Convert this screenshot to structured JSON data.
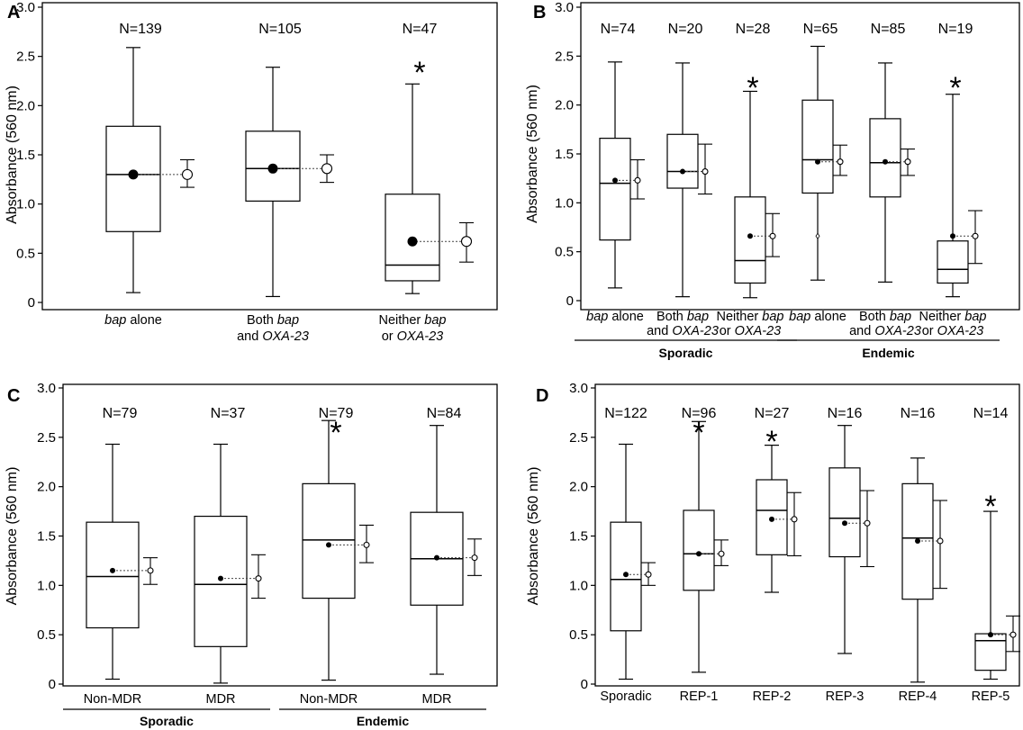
{
  "figure": {
    "panel_count": 4
  },
  "colors": {
    "ink": "#000000",
    "background": "#ffffff",
    "ci_marker_fill": "#ffffff"
  },
  "chart_data": [
    {
      "panel_label": "A",
      "type": "box",
      "ylabel": "Absorbance (560 nm)",
      "ylim": [
        0,
        3.0
      ],
      "yticks": [
        0,
        0.5,
        1.0,
        1.5,
        2.0,
        2.5,
        3.0
      ],
      "ytick_labels": [
        "0",
        "0.5",
        "1.0",
        "1.5",
        "2.0",
        "2.5",
        "3.0"
      ],
      "groups": [],
      "series": [
        {
          "label_rich": [
            {
              "text": "bap",
              "italic": true
            },
            {
              "text": " alone",
              "italic": false
            }
          ],
          "label": "bap alone",
          "n_label": "N=139",
          "star": false,
          "min": 0.1,
          "q1": 0.72,
          "median": 1.3,
          "q3": 1.79,
          "max": 2.59,
          "mean": 1.3,
          "ci_low": 1.17,
          "ci_high": 1.45
        },
        {
          "label_rich": [
            {
              "text": "Both ",
              "italic": false
            },
            {
              "text": "bap",
              "italic": true
            },
            {
              "text": "\n",
              "italic": false
            },
            {
              "text": "and ",
              "italic": false
            },
            {
              "text": "OXA-23",
              "italic": true
            }
          ],
          "label": "Both bap and OXA-23",
          "n_label": "N=105",
          "star": false,
          "min": 0.06,
          "q1": 1.03,
          "median": 1.36,
          "q3": 1.74,
          "max": 2.39,
          "mean": 1.36,
          "ci_low": 1.22,
          "ci_high": 1.5
        },
        {
          "label_rich": [
            {
              "text": "Neither ",
              "italic": false
            },
            {
              "text": "bap",
              "italic": true
            },
            {
              "text": "\n",
              "italic": false
            },
            {
              "text": "or ",
              "italic": false
            },
            {
              "text": "OXA-23",
              "italic": true
            }
          ],
          "label": "Neither bap or OXA-23",
          "n_label": "N=47",
          "star": true,
          "min": 0.09,
          "q1": 0.22,
          "median": 0.38,
          "q3": 1.1,
          "max": 2.22,
          "mean": 0.62,
          "ci_low": 0.41,
          "ci_high": 0.81
        }
      ]
    },
    {
      "panel_label": "B",
      "type": "box",
      "ylabel": "Absorbance (560 nm)",
      "ylim": [
        0,
        3.0
      ],
      "yticks": [
        0,
        0.5,
        1.0,
        1.5,
        2.0,
        2.5,
        3.0
      ],
      "ytick_labels": [
        "0",
        "0.5",
        "1.0",
        "1.5",
        "2.0",
        "2.5",
        "3.0"
      ],
      "groups": [
        {
          "label": "Sporadic",
          "from": 0,
          "to": 2
        },
        {
          "label": "Endemic",
          "from": 3,
          "to": 5
        }
      ],
      "series": [
        {
          "label_rich": [
            {
              "text": "bap",
              "italic": true
            },
            {
              "text": " alone",
              "italic": false
            }
          ],
          "label": "bap alone",
          "n_label": "N=74",
          "star": false,
          "min": 0.13,
          "q1": 0.62,
          "median": 1.2,
          "q3": 1.66,
          "max": 2.44,
          "mean": 1.23,
          "ci_low": 1.04,
          "ci_high": 1.44
        },
        {
          "label_rich": [
            {
              "text": "Both ",
              "italic": false
            },
            {
              "text": "bap",
              "italic": true
            },
            {
              "text": "\n",
              "italic": false
            },
            {
              "text": "and ",
              "italic": false
            },
            {
              "text": "OXA-23",
              "italic": true
            }
          ],
          "label": "Both bap and OXA-23",
          "n_label": "N=20",
          "star": false,
          "min": 0.04,
          "q1": 1.15,
          "median": 1.32,
          "q3": 1.7,
          "max": 2.43,
          "mean": 1.32,
          "ci_low": 1.09,
          "ci_high": 1.6
        },
        {
          "label_rich": [
            {
              "text": "Neither ",
              "italic": false
            },
            {
              "text": "bap",
              "italic": true
            },
            {
              "text": "\n",
              "italic": false
            },
            {
              "text": "or ",
              "italic": false
            },
            {
              "text": "OXA-23",
              "italic": true
            }
          ],
          "label": "Neither bap or OXA-23",
          "n_label": "N=28",
          "star": true,
          "min": 0.03,
          "q1": 0.18,
          "median": 0.41,
          "q3": 1.06,
          "max": 2.14,
          "mean": 0.66,
          "ci_low": 0.45,
          "ci_high": 0.89
        },
        {
          "label_rich": [
            {
              "text": "bap",
              "italic": true
            },
            {
              "text": " alone",
              "italic": false
            }
          ],
          "label": "bap alone",
          "n_label": "N=65",
          "star": false,
          "min": 0.21,
          "q1": 1.1,
          "median": 1.44,
          "q3": 2.05,
          "max": 2.6,
          "mean": 1.42,
          "ci_low": 1.28,
          "ci_high": 1.59,
          "extra_point": 0.66
        },
        {
          "label_rich": [
            {
              "text": "Both ",
              "italic": false
            },
            {
              "text": "bap",
              "italic": true
            },
            {
              "text": "\n",
              "italic": false
            },
            {
              "text": "and ",
              "italic": false
            },
            {
              "text": "OXA-23",
              "italic": true
            }
          ],
          "label": "Both bap and OXA-23",
          "n_label": "N=85",
          "star": false,
          "min": 0.19,
          "q1": 1.06,
          "median": 1.41,
          "q3": 1.86,
          "max": 2.43,
          "mean": 1.42,
          "ci_low": 1.28,
          "ci_high": 1.55
        },
        {
          "label_rich": [
            {
              "text": "Neither ",
              "italic": false
            },
            {
              "text": "bap",
              "italic": true
            },
            {
              "text": "\n",
              "italic": false
            },
            {
              "text": "or ",
              "italic": false
            },
            {
              "text": "OXA-23",
              "italic": true
            }
          ],
          "label": "Neither bap or OXA-23",
          "n_label": "N=19",
          "star": true,
          "min": 0.04,
          "q1": 0.18,
          "median": 0.32,
          "q3": 0.61,
          "max": 2.11,
          "mean": 0.66,
          "ci_low": 0.38,
          "ci_high": 0.92
        }
      ]
    },
    {
      "panel_label": "C",
      "type": "box",
      "ylabel": "Absorbance (560 nm)",
      "ylim": [
        0,
        3.0
      ],
      "yticks": [
        0,
        0.5,
        1.0,
        1.5,
        2.0,
        2.5,
        3.0
      ],
      "ytick_labels": [
        "0",
        "0.5",
        "1.0",
        "1.5",
        "2.0",
        "2.5",
        "3.0"
      ],
      "groups": [
        {
          "label": "Sporadic",
          "from": 0,
          "to": 1
        },
        {
          "label": "Endemic",
          "from": 2,
          "to": 3
        }
      ],
      "series": [
        {
          "label_rich": [
            {
              "text": "Non-MDR",
              "italic": false
            }
          ],
          "label": "Non-MDR",
          "n_label": "N=79",
          "star": false,
          "min": 0.05,
          "q1": 0.57,
          "median": 1.09,
          "q3": 1.64,
          "max": 2.43,
          "mean": 1.15,
          "ci_low": 1.01,
          "ci_high": 1.28
        },
        {
          "label_rich": [
            {
              "text": "MDR",
              "italic": false
            }
          ],
          "label": "MDR",
          "n_label": "N=37",
          "star": false,
          "min": 0.01,
          "q1": 0.38,
          "median": 1.01,
          "q3": 1.7,
          "max": 2.43,
          "mean": 1.07,
          "ci_low": 0.87,
          "ci_high": 1.31
        },
        {
          "label_rich": [
            {
              "text": "Non-MDR",
              "italic": false
            }
          ],
          "label": "Non-MDR",
          "n_label": "N=79",
          "star": true,
          "min": 0.04,
          "q1": 0.87,
          "median": 1.46,
          "q3": 2.03,
          "max": 2.67,
          "mean": 1.41,
          "ci_low": 1.23,
          "ci_high": 1.61
        },
        {
          "label_rich": [
            {
              "text": "MDR",
              "italic": false
            }
          ],
          "label": "MDR",
          "n_label": "N=84",
          "star": false,
          "min": 0.1,
          "q1": 0.8,
          "median": 1.27,
          "q3": 1.74,
          "max": 2.62,
          "mean": 1.28,
          "ci_low": 1.1,
          "ci_high": 1.47
        }
      ]
    },
    {
      "panel_label": "D",
      "type": "box",
      "ylabel": "Absorbance (560 nm)",
      "ylim": [
        0,
        3.0
      ],
      "yticks": [
        0,
        0.5,
        1.0,
        1.5,
        2.0,
        2.5,
        3.0
      ],
      "ytick_labels": [
        "0",
        "0.5",
        "1.0",
        "1.5",
        "2.0",
        "2.5",
        "3.0"
      ],
      "groups": [],
      "series": [
        {
          "label_rich": [
            {
              "text": "Sporadic",
              "italic": false
            }
          ],
          "label": "Sporadic",
          "n_label": "N=122",
          "star": false,
          "min": 0.05,
          "q1": 0.54,
          "median": 1.06,
          "q3": 1.64,
          "max": 2.43,
          "mean": 1.11,
          "ci_low": 1.0,
          "ci_high": 1.23
        },
        {
          "label_rich": [
            {
              "text": "REP-1",
              "italic": false
            }
          ],
          "label": "REP-1",
          "n_label": "N=96",
          "star": true,
          "min": 0.12,
          "q1": 0.95,
          "median": 1.32,
          "q3": 1.76,
          "max": 2.66,
          "mean": 1.32,
          "ci_low": 1.2,
          "ci_high": 1.46
        },
        {
          "label_rich": [
            {
              "text": "REP-2",
              "italic": false
            }
          ],
          "label": "REP-2",
          "n_label": "N=27",
          "star": true,
          "min": 0.93,
          "q1": 1.31,
          "median": 1.76,
          "q3": 2.07,
          "max": 2.42,
          "mean": 1.67,
          "ci_low": 1.3,
          "ci_high": 1.94
        },
        {
          "label_rich": [
            {
              "text": "REP-3",
              "italic": false
            }
          ],
          "label": "REP-3",
          "n_label": "N=16",
          "star": false,
          "min": 0.31,
          "q1": 1.29,
          "median": 1.68,
          "q3": 2.19,
          "max": 2.62,
          "mean": 1.63,
          "ci_low": 1.19,
          "ci_high": 1.96
        },
        {
          "label_rich": [
            {
              "text": "REP-4",
              "italic": false
            }
          ],
          "label": "REP-4",
          "n_label": "N=16",
          "star": false,
          "min": 0.02,
          "q1": 0.86,
          "median": 1.48,
          "q3": 2.03,
          "max": 2.29,
          "mean": 1.45,
          "ci_low": 0.97,
          "ci_high": 1.86
        },
        {
          "label_rich": [
            {
              "text": "REP-5",
              "italic": false
            }
          ],
          "label": "REP-5",
          "n_label": "N=14",
          "star": true,
          "min": 0.05,
          "q1": 0.14,
          "median": 0.44,
          "q3": 0.51,
          "max": 1.75,
          "mean": 0.5,
          "ci_low": 0.33,
          "ci_high": 0.69
        }
      ]
    }
  ]
}
